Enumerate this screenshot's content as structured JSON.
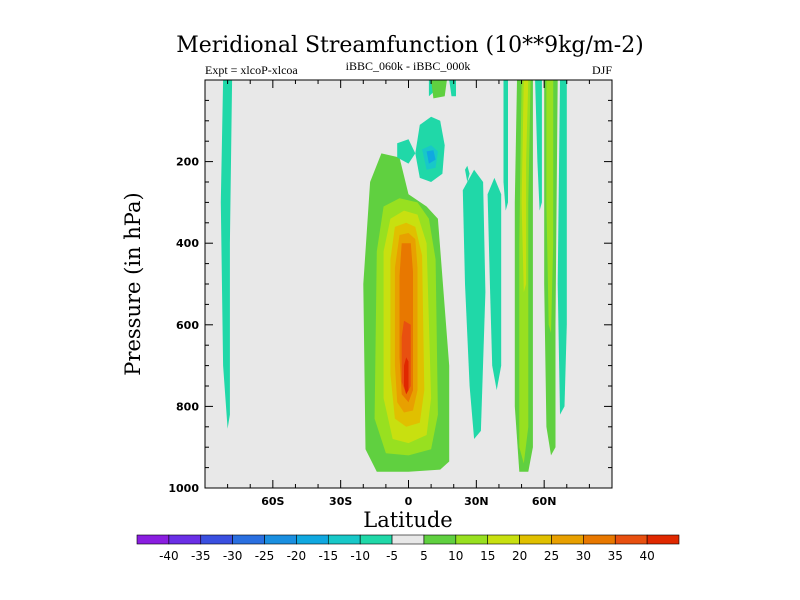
{
  "chart_data": {
    "type": "contour",
    "title": "Meridional Streamfunction (10**9kg/m-2)",
    "left_label": "Expt = xlcoP-xlcoa",
    "center_label": "iBBC_060k - iBBC_000k",
    "right_label": "DJF",
    "xlabel": "Latitude",
    "ylabel": "Pressure (in hPa)",
    "xlim": [
      -90,
      90
    ],
    "ylim": [
      1000,
      0
    ],
    "x_ticks": [
      {
        "value": -60,
        "label": "60S"
      },
      {
        "value": -30,
        "label": "30S"
      },
      {
        "value": 0,
        "label": "0"
      },
      {
        "value": 30,
        "label": "30N"
      },
      {
        "value": 60,
        "label": "60N"
      }
    ],
    "y_ticks": [
      {
        "value": 200,
        "label": "200"
      },
      {
        "value": 400,
        "label": "400"
      },
      {
        "value": 600,
        "label": "600"
      },
      {
        "value": 800,
        "label": "800"
      },
      {
        "value": 1000,
        "label": "1000"
      }
    ],
    "background_color": "#e8e8e8",
    "levels": [
      "-40",
      "-35",
      "-30",
      "-25",
      "-20",
      "-15",
      "-10",
      "-5",
      "5",
      "10",
      "15",
      "20",
      "25",
      "30",
      "35",
      "40"
    ],
    "colorbar_colors": [
      "#8a1ee0",
      "#6a2fe6",
      "#3a4fe0",
      "#2a6fe0",
      "#1a8fe0",
      "#10a8e0",
      "#18c8c8",
      "#20d8a8",
      "#e8e8e8",
      "#60d040",
      "#98e020",
      "#c8e010",
      "#e0c000",
      "#e8a000",
      "#e87800",
      "#e85010",
      "#e02800"
    ],
    "contours": [
      {
        "name": "sh-polar-negative",
        "color": "#20d8a8",
        "points": [
          [
            -82,
            0
          ],
          [
            -78,
            0
          ],
          [
            -79,
            400
          ],
          [
            -79,
            820
          ],
          [
            -80,
            855
          ],
          [
            -82,
            700
          ],
          [
            -83,
            300
          ]
        ]
      },
      {
        "name": "tropical-cell-positive",
        "color": "#60d040",
        "points": [
          [
            -17,
            250
          ],
          [
            -12,
            180
          ],
          [
            -4,
            190
          ],
          [
            0,
            280
          ],
          [
            8,
            310
          ],
          [
            13,
            340
          ],
          [
            18,
            700
          ],
          [
            18,
            935
          ],
          [
            14,
            955
          ],
          [
            0,
            960
          ],
          [
            -14,
            960
          ],
          [
            -19,
            905
          ],
          [
            -20,
            500
          ]
        ]
      },
      {
        "name": "tropical-cell-10",
        "color": "#98e020",
        "points": [
          [
            -11,
            310
          ],
          [
            -4,
            290
          ],
          [
            4,
            300
          ],
          [
            9,
            340
          ],
          [
            12,
            440
          ],
          [
            13,
            820
          ],
          [
            10,
            905
          ],
          [
            0,
            920
          ],
          [
            -10,
            915
          ],
          [
            -15,
            830
          ],
          [
            -14,
            420
          ]
        ]
      },
      {
        "name": "tropical-cell-15",
        "color": "#c8e010",
        "points": [
          [
            -8,
            340
          ],
          [
            -2,
            320
          ],
          [
            4,
            330
          ],
          [
            8,
            400
          ],
          [
            10,
            780
          ],
          [
            8,
            870
          ],
          [
            0,
            890
          ],
          [
            -7,
            880
          ],
          [
            -11,
            780
          ],
          [
            -11,
            420
          ]
        ]
      },
      {
        "name": "tropical-cell-20",
        "color": "#e0c000",
        "points": [
          [
            -6,
            360
          ],
          [
            -1,
            350
          ],
          [
            3,
            360
          ],
          [
            6,
            430
          ],
          [
            7,
            760
          ],
          [
            5,
            840
          ],
          [
            -1,
            850
          ],
          [
            -6,
            830
          ],
          [
            -8,
            720
          ],
          [
            -8,
            440
          ]
        ]
      },
      {
        "name": "tropical-cell-25",
        "color": "#e8a000",
        "points": [
          [
            -4,
            380
          ],
          [
            0,
            375
          ],
          [
            3,
            390
          ],
          [
            4,
            460
          ],
          [
            4,
            760
          ],
          [
            2,
            810
          ],
          [
            -2,
            815
          ],
          [
            -5,
            790
          ],
          [
            -6,
            700
          ],
          [
            -6,
            460
          ]
        ]
      },
      {
        "name": "tropical-cell-30",
        "color": "#e87800",
        "points": [
          [
            -3,
            400
          ],
          [
            1,
            400
          ],
          [
            2,
            470
          ],
          [
            2,
            760
          ],
          [
            0,
            790
          ],
          [
            -3,
            770
          ],
          [
            -4,
            680
          ],
          [
            -4,
            480
          ]
        ]
      },
      {
        "name": "tropical-cell-35",
        "color": "#e85010",
        "points": [
          [
            -2,
            590
          ],
          [
            1,
            600
          ],
          [
            1,
            750
          ],
          [
            -1,
            770
          ],
          [
            -3,
            740
          ],
          [
            -3,
            630
          ]
        ]
      },
      {
        "name": "tropical-cell-40",
        "color": "#e02800",
        "points": [
          [
            -1,
            680
          ],
          [
            0,
            690
          ],
          [
            0,
            760
          ],
          [
            -1,
            770
          ],
          [
            -2,
            750
          ],
          [
            -2,
            700
          ]
        ]
      },
      {
        "name": "upper-negative-tongue",
        "color": "#20d8a8",
        "points": [
          [
            3,
            180
          ],
          [
            5,
            110
          ],
          [
            10,
            90
          ],
          [
            14,
            100
          ],
          [
            16,
            160
          ],
          [
            15,
            230
          ],
          [
            10,
            250
          ],
          [
            5,
            240
          ]
        ]
      },
      {
        "name": "upper-negative-core",
        "color": "#18c8c8",
        "points": [
          [
            6,
            170
          ],
          [
            10,
            160
          ],
          [
            13,
            175
          ],
          [
            12,
            215
          ],
          [
            8,
            220
          ]
        ]
      },
      {
        "name": "upper-negative-center",
        "color": "#10a8e0",
        "points": [
          [
            8,
            175
          ],
          [
            11,
            172
          ],
          [
            12,
            195
          ],
          [
            9,
            205
          ]
        ]
      },
      {
        "name": "upper-negative-left",
        "color": "#20d8a8",
        "points": [
          [
            -5,
            155
          ],
          [
            0,
            145
          ],
          [
            3,
            180
          ],
          [
            0,
            205
          ],
          [
            -5,
            190
          ]
        ]
      },
      {
        "name": "subtropic-negative-1",
        "color": "#20d8a8",
        "points": [
          [
            24,
            270
          ],
          [
            29,
            220
          ],
          [
            33,
            250
          ],
          [
            34,
            520
          ],
          [
            32,
            860
          ],
          [
            29,
            880
          ],
          [
            27,
            750
          ],
          [
            25,
            500
          ]
        ]
      },
      {
        "name": "subtropic-negative-2",
        "color": "#20d8a8",
        "points": [
          [
            35,
            280
          ],
          [
            38,
            240
          ],
          [
            41,
            280
          ],
          [
            41,
            700
          ],
          [
            39,
            760
          ],
          [
            37,
            700
          ],
          [
            36,
            500
          ]
        ]
      },
      {
        "name": "small-neg-a",
        "color": "#20d8a8",
        "points": [
          [
            9,
            0
          ],
          [
            11,
            0
          ],
          [
            11,
            30
          ],
          [
            9,
            40
          ]
        ]
      },
      {
        "name": "small-neg-b",
        "color": "#20d8a8",
        "points": [
          [
            18,
            0
          ],
          [
            21,
            0
          ],
          [
            21,
            40
          ],
          [
            19,
            40
          ]
        ]
      },
      {
        "name": "small-pos-top",
        "color": "#60d040",
        "points": [
          [
            10,
            0
          ],
          [
            17,
            0
          ],
          [
            16,
            40
          ],
          [
            11,
            45
          ]
        ]
      },
      {
        "name": "tiny-neg",
        "color": "#20d8a8",
        "points": [
          [
            25,
            220
          ],
          [
            26,
            210
          ],
          [
            27,
            230
          ],
          [
            26,
            250
          ]
        ]
      },
      {
        "name": "nh-positive-band-outer",
        "color": "#60d040",
        "points": [
          [
            48,
            0
          ],
          [
            55,
            0
          ],
          [
            55,
            200
          ],
          [
            55,
            900
          ],
          [
            53,
            960
          ],
          [
            49,
            960
          ],
          [
            47,
            800
          ],
          [
            47,
            300
          ]
        ]
      },
      {
        "name": "nh-positive-band-inner",
        "color": "#98e020",
        "points": [
          [
            50,
            0
          ],
          [
            54,
            0
          ],
          [
            53,
            300
          ],
          [
            53,
            850
          ],
          [
            51,
            940
          ],
          [
            49,
            900
          ],
          [
            49,
            400
          ]
        ]
      },
      {
        "name": "nh-positive-band-core",
        "color": "#c8e010",
        "points": [
          [
            51,
            0
          ],
          [
            53,
            0
          ],
          [
            52,
            200
          ],
          [
            52,
            500
          ],
          [
            51,
            520
          ],
          [
            50,
            300
          ]
        ]
      },
      {
        "name": "nh-negative-left",
        "color": "#20d8a8",
        "points": [
          [
            42,
            0
          ],
          [
            44,
            0
          ],
          [
            44,
            300
          ],
          [
            43,
            320
          ],
          [
            42,
            250
          ]
        ]
      },
      {
        "name": "nh-positive-right-outer",
        "color": "#60d040",
        "points": [
          [
            60,
            0
          ],
          [
            66,
            0
          ],
          [
            65,
            600
          ],
          [
            65,
            900
          ],
          [
            63,
            920
          ],
          [
            61,
            850
          ],
          [
            60,
            500
          ]
        ]
      },
      {
        "name": "nh-positive-right-inner",
        "color": "#98e020",
        "points": [
          [
            61,
            0
          ],
          [
            64,
            0
          ],
          [
            64,
            400
          ],
          [
            63,
            620
          ],
          [
            62,
            600
          ],
          [
            61,
            300
          ]
        ]
      },
      {
        "name": "nh-negative-right",
        "color": "#20d8a8",
        "points": [
          [
            67,
            0
          ],
          [
            70,
            0
          ],
          [
            70,
            600
          ],
          [
            69,
            800
          ],
          [
            67,
            820
          ],
          [
            66,
            500
          ]
        ]
      },
      {
        "name": "nh-negative-small",
        "color": "#20d8a8",
        "points": [
          [
            56,
            0
          ],
          [
            59,
            0
          ],
          [
            59,
            300
          ],
          [
            58,
            320
          ],
          [
            57,
            200
          ]
        ]
      }
    ]
  }
}
